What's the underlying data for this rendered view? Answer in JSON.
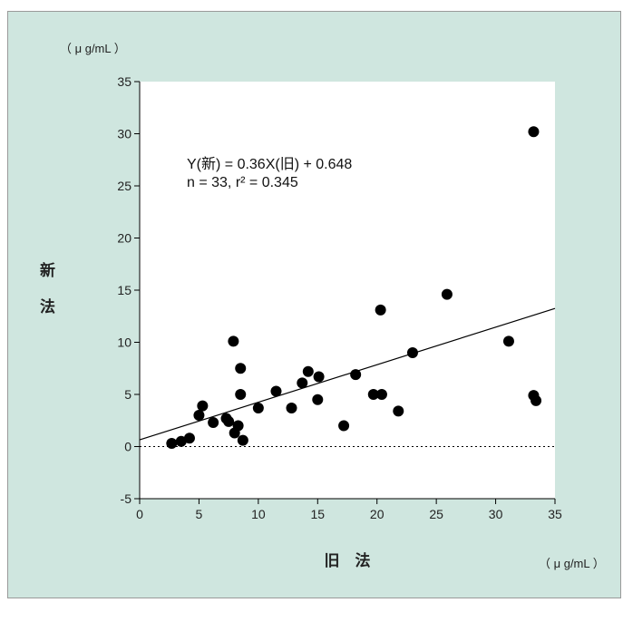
{
  "chart_data": {
    "type": "scatter",
    "title": "",
    "xlabel": "旧　法",
    "ylabel_chars": [
      "新",
      "法"
    ],
    "x_unit": "（ μ g/mL ）",
    "y_unit": "（ μ g/mL ）",
    "xlim": [
      0,
      35
    ],
    "ylim": [
      -5,
      35
    ],
    "x_ticks": [
      0,
      5,
      10,
      15,
      20,
      25,
      30,
      35
    ],
    "y_ticks": [
      -5,
      0,
      5,
      10,
      15,
      20,
      25,
      30,
      35
    ],
    "grid": false,
    "annotations": [
      "Y(新) = 0.36X(旧) + 0.648",
      "n = 33, r² = 0.345"
    ],
    "regression": {
      "slope": 0.36,
      "intercept": 0.648
    },
    "zero_line": "dotted",
    "points": [
      {
        "x": 2.7,
        "y": 0.3
      },
      {
        "x": 3.5,
        "y": 0.5
      },
      {
        "x": 4.2,
        "y": 0.8
      },
      {
        "x": 5.0,
        "y": 3.0
      },
      {
        "x": 5.3,
        "y": 3.9
      },
      {
        "x": 6.2,
        "y": 2.3
      },
      {
        "x": 7.3,
        "y": 2.7
      },
      {
        "x": 7.5,
        "y": 2.4
      },
      {
        "x": 7.9,
        "y": 10.1
      },
      {
        "x": 8.0,
        "y": 1.3
      },
      {
        "x": 8.3,
        "y": 2.0
      },
      {
        "x": 8.5,
        "y": 5.0
      },
      {
        "x": 8.5,
        "y": 7.5
      },
      {
        "x": 8.7,
        "y": 0.6
      },
      {
        "x": 10.0,
        "y": 3.7
      },
      {
        "x": 11.5,
        "y": 5.3
      },
      {
        "x": 12.8,
        "y": 3.7
      },
      {
        "x": 13.7,
        "y": 6.1
      },
      {
        "x": 14.2,
        "y": 7.2
      },
      {
        "x": 15.0,
        "y": 4.5
      },
      {
        "x": 15.1,
        "y": 6.7
      },
      {
        "x": 17.2,
        "y": 2.0
      },
      {
        "x": 18.2,
        "y": 6.9
      },
      {
        "x": 19.7,
        "y": 5.0
      },
      {
        "x": 20.3,
        "y": 13.1
      },
      {
        "x": 20.4,
        "y": 5.0
      },
      {
        "x": 21.8,
        "y": 3.4
      },
      {
        "x": 23.0,
        "y": 9.0
      },
      {
        "x": 25.9,
        "y": 14.6
      },
      {
        "x": 31.1,
        "y": 10.1
      },
      {
        "x": 33.2,
        "y": 30.2
      },
      {
        "x": 33.2,
        "y": 4.9
      },
      {
        "x": 33.4,
        "y": 4.4
      }
    ]
  },
  "colors": {
    "background": "#cfe6df",
    "plot_area": "#ffffff",
    "marker": "#000000",
    "line": "#000000"
  }
}
